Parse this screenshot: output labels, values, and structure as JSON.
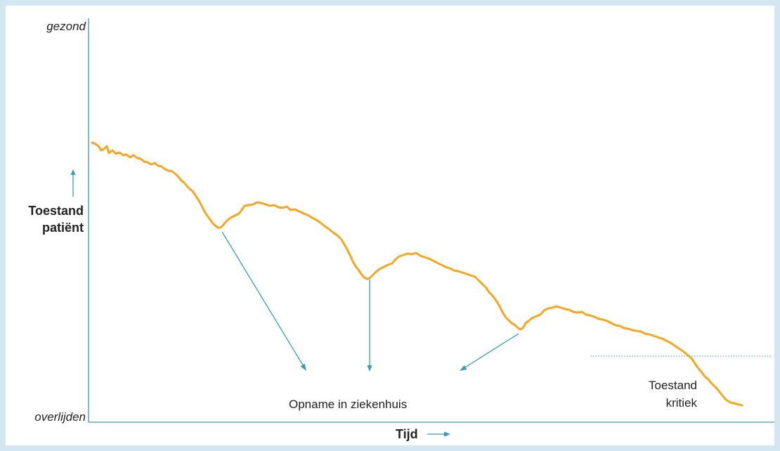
{
  "y_axis": {
    "top_label": "gezond",
    "bottom_label": "overlijden",
    "title_line1": "Toestand",
    "title_line2": "patiënt"
  },
  "x_axis": {
    "title": "Tijd"
  },
  "annotations": {
    "hospital": "Opname in ziekenhuis",
    "critical_line1": "Toestand",
    "critical_line2": "kritiek"
  },
  "colors": {
    "background": "#d3e7f3",
    "axis": "#3a9bb2",
    "curve": "#f5a623",
    "text": "#222222"
  }
}
